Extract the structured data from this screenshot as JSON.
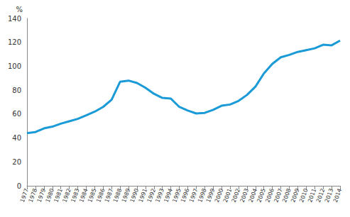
{
  "chart_data": {
    "type": "line",
    "y_label": "%",
    "categories": [
      "1977",
      "1978",
      "1979",
      "1980",
      "1981",
      "1982",
      "1983",
      "1984",
      "1985",
      "1986",
      "1987",
      "1988",
      "1989",
      "1990",
      "1991",
      "1992",
      "1993",
      "1994",
      "1995",
      "1996",
      "1997",
      "1998",
      "1999",
      "2000",
      "2001",
      "2002",
      "2003",
      "2004",
      "2005",
      "2006",
      "2007",
      "2008",
      "2009",
      "2010",
      "2011",
      "2012",
      "2013",
      "2014"
    ],
    "values": [
      44,
      45,
      48,
      49.5,
      52,
      54,
      56,
      59,
      62,
      66,
      72,
      87,
      88,
      86,
      82,
      77,
      73.5,
      73,
      66,
      63,
      60.5,
      61,
      63.5,
      67,
      68,
      71,
      76,
      83,
      94,
      102,
      107.5,
      109.5,
      112,
      113.5,
      115,
      118,
      117.5,
      121.5
    ],
    "color": "#1a9ad6",
    "ylim": [
      0,
      140
    ],
    "yticks": [
      0,
      20,
      40,
      60,
      80,
      100,
      120,
      140
    ],
    "grid": false
  }
}
